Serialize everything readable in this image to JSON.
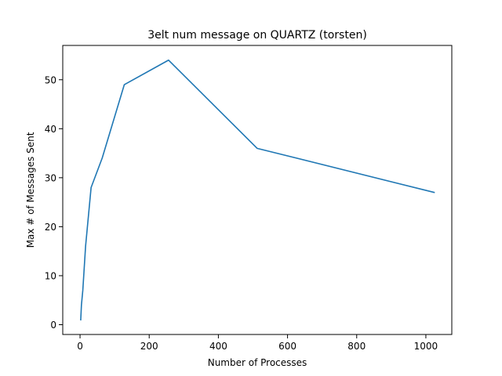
{
  "chart_data": {
    "type": "line",
    "title": "3elt num message on QUARTZ (torsten)",
    "xlabel": "Number of Processes",
    "ylabel": "Max # of Messages Sent",
    "xlim": [
      -50,
      1075
    ],
    "ylim": [
      -2,
      57
    ],
    "xticks": [
      0,
      200,
      400,
      600,
      800,
      1000
    ],
    "yticks": [
      0,
      10,
      20,
      30,
      40,
      50
    ],
    "grid": false,
    "legend": "none",
    "series_color": "#1f77b4",
    "series": [
      {
        "x": [
          2,
          4,
          8,
          16,
          32,
          64,
          128,
          256,
          512,
          1024
        ],
        "y": [
          1,
          4,
          7,
          16,
          28,
          34,
          49,
          54,
          36,
          27
        ]
      }
    ]
  }
}
